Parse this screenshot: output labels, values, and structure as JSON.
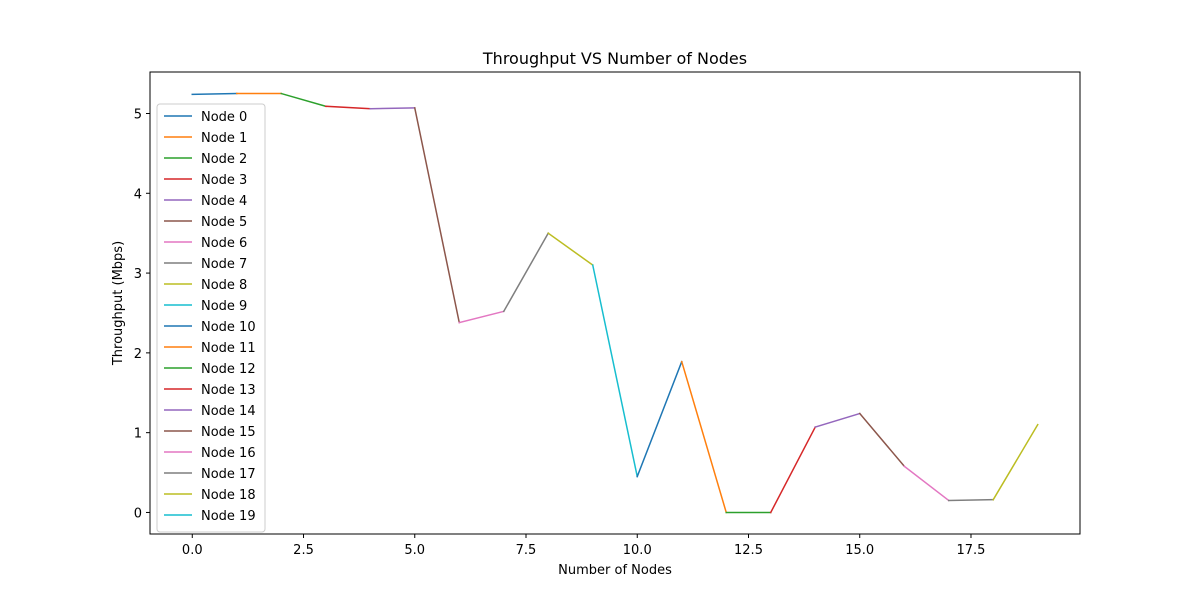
{
  "chart_data": {
    "type": "line",
    "title": "Throughput VS Number of Nodes",
    "xlabel": "Number of Nodes",
    "ylabel": "Throughput (Mbps)",
    "xlim": [
      -0.95,
      19.95
    ],
    "ylim": [
      -0.27,
      5.52
    ],
    "xticks": [
      0.0,
      2.5,
      5.0,
      7.5,
      10.0,
      12.5,
      15.0,
      17.5
    ],
    "xtick_labels": [
      "0.0",
      "2.5",
      "5.0",
      "7.5",
      "10.0",
      "12.5",
      "15.0",
      "17.5"
    ],
    "yticks": [
      0,
      1,
      2,
      3,
      4,
      5
    ],
    "ytick_labels": [
      "0",
      "1",
      "2",
      "3",
      "4",
      "5"
    ],
    "grid": false,
    "legend_position": "upper-left",
    "series": [
      {
        "name": "Node 0",
        "color": "#1f77b4",
        "x": [
          0,
          1
        ],
        "y": [
          5.24,
          5.25
        ]
      },
      {
        "name": "Node 1",
        "color": "#ff7f0e",
        "x": [
          1,
          2
        ],
        "y": [
          5.25,
          5.25
        ]
      },
      {
        "name": "Node 2",
        "color": "#2ca02c",
        "x": [
          2,
          3
        ],
        "y": [
          5.25,
          5.09
        ]
      },
      {
        "name": "Node 3",
        "color": "#d62728",
        "x": [
          3,
          4
        ],
        "y": [
          5.09,
          5.06
        ]
      },
      {
        "name": "Node 4",
        "color": "#9467bd",
        "x": [
          4,
          5
        ],
        "y": [
          5.06,
          5.07
        ]
      },
      {
        "name": "Node 5",
        "color": "#8c564b",
        "x": [
          5,
          6
        ],
        "y": [
          5.07,
          2.38
        ]
      },
      {
        "name": "Node 6",
        "color": "#e377c2",
        "x": [
          6,
          7
        ],
        "y": [
          2.38,
          2.52
        ]
      },
      {
        "name": "Node 7",
        "color": "#7f7f7f",
        "x": [
          7,
          8
        ],
        "y": [
          2.52,
          3.5
        ]
      },
      {
        "name": "Node 8",
        "color": "#bcbd22",
        "x": [
          8,
          9
        ],
        "y": [
          3.5,
          3.1
        ]
      },
      {
        "name": "Node 9",
        "color": "#17becf",
        "x": [
          9,
          10
        ],
        "y": [
          3.1,
          0.45
        ]
      },
      {
        "name": "Node 10",
        "color": "#1f77b4",
        "x": [
          10,
          11
        ],
        "y": [
          0.45,
          1.89
        ]
      },
      {
        "name": "Node 11",
        "color": "#ff7f0e",
        "x": [
          11,
          12
        ],
        "y": [
          1.89,
          0.0
        ]
      },
      {
        "name": "Node 12",
        "color": "#2ca02c",
        "x": [
          12,
          13
        ],
        "y": [
          0.0,
          0.0
        ]
      },
      {
        "name": "Node 13",
        "color": "#d62728",
        "x": [
          13,
          14
        ],
        "y": [
          0.0,
          1.07
        ]
      },
      {
        "name": "Node 14",
        "color": "#9467bd",
        "x": [
          14,
          15
        ],
        "y": [
          1.07,
          1.24
        ]
      },
      {
        "name": "Node 15",
        "color": "#8c564b",
        "x": [
          15,
          16
        ],
        "y": [
          1.24,
          0.58
        ]
      },
      {
        "name": "Node 16",
        "color": "#e377c2",
        "x": [
          16,
          17
        ],
        "y": [
          0.58,
          0.15
        ]
      },
      {
        "name": "Node 17",
        "color": "#7f7f7f",
        "x": [
          17,
          18
        ],
        "y": [
          0.15,
          0.16
        ]
      },
      {
        "name": "Node 18",
        "color": "#bcbd22",
        "x": [
          18,
          19
        ],
        "y": [
          0.16,
          1.1
        ]
      },
      {
        "name": "Node 19",
        "color": "#17becf",
        "x": [
          19
        ],
        "y": [
          1.1
        ]
      }
    ]
  }
}
